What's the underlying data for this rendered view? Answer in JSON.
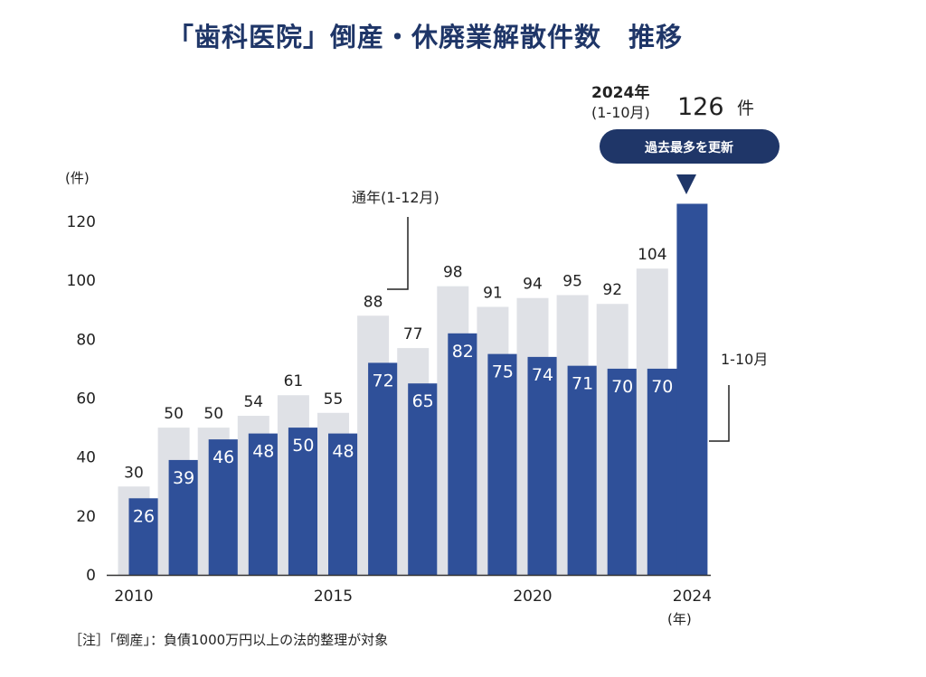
{
  "title": "「歯科医院」倒産・休廃業解散件数　推移",
  "note": "［注］「倒産」：負債1000万円以上の法的整理が対象",
  "colors": {
    "full_year": "#dfe1e6",
    "jan_oct": "#2f5099",
    "badge": "#1f3668"
  },
  "highlight": {
    "year": "2024年",
    "period": "(1-10月)",
    "count": "126",
    "unit": "件",
    "badge": "過去最多を更新"
  },
  "chart_data": {
    "type": "bar",
    "title": "「歯科医院」倒産・休廃業解散件数　推移",
    "ylabel": "(件)",
    "xlabel": "(年)",
    "ylim": [
      0,
      120
    ],
    "yticks": [
      0,
      20,
      40,
      60,
      80,
      100,
      120
    ],
    "categories": [
      "2010",
      "2011",
      "2012",
      "2013",
      "2014",
      "2015",
      "2016",
      "2017",
      "2018",
      "2019",
      "2020",
      "2021",
      "2022",
      "2023",
      "2024"
    ],
    "x_tick_labels": [
      {
        "index": 0,
        "label": "2010"
      },
      {
        "index": 5,
        "label": "2015"
      },
      {
        "index": 10,
        "label": "2020"
      },
      {
        "index": 14,
        "label": "2024"
      }
    ],
    "series": [
      {
        "name": "通年(1-12月)",
        "values": [
          30,
          50,
          50,
          54,
          61,
          55,
          88,
          77,
          98,
          91,
          94,
          95,
          92,
          104,
          null
        ]
      },
      {
        "name": "1-10月",
        "values": [
          26,
          39,
          46,
          48,
          50,
          48,
          72,
          65,
          82,
          75,
          74,
          71,
          70,
          70,
          126
        ]
      }
    ],
    "annotations": [
      "通年(1-12月)",
      "1-10月"
    ],
    "grid": false,
    "legend": "callouts"
  }
}
